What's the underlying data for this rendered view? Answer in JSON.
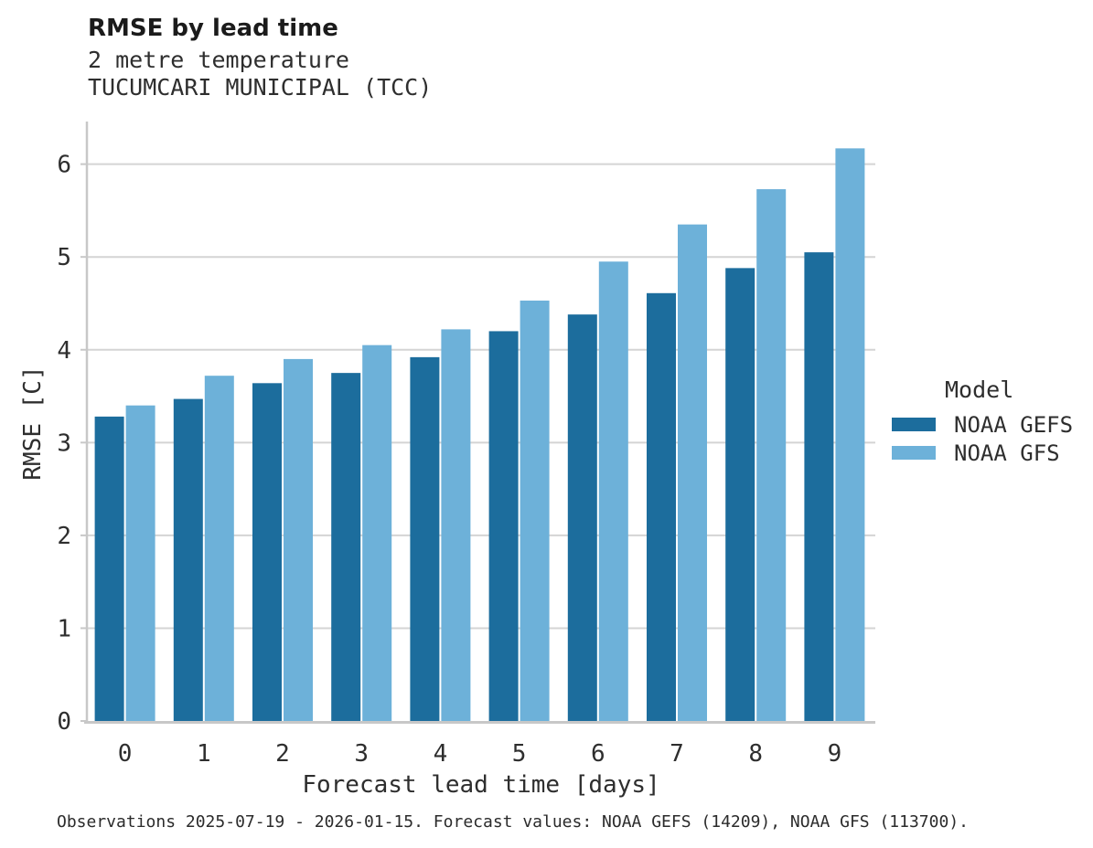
{
  "header": {
    "title": "RMSE by lead time",
    "subtitle": "2 metre temperature",
    "station": "TUCUMCARI MUNICIPAL (TCC)"
  },
  "caption": "Observations 2025-07-19 - 2026-01-15. Forecast values: NOAA GEFS (14209), NOAA GFS (113700).",
  "legend": {
    "title": "Model",
    "entries": [
      {
        "label": "NOAA GEFS",
        "color": "#1c6d9d"
      },
      {
        "label": "NOAA GFS",
        "color": "#6db1d9"
      }
    ]
  },
  "chart_data": {
    "type": "bar",
    "categories": [
      "0",
      "1",
      "2",
      "3",
      "4",
      "5",
      "6",
      "7",
      "8",
      "9"
    ],
    "series": [
      {
        "name": "NOAA GEFS",
        "color": "#1c6d9d",
        "values": [
          3.28,
          3.47,
          3.64,
          3.75,
          3.92,
          4.2,
          4.38,
          4.61,
          4.88,
          5.05
        ]
      },
      {
        "name": "NOAA GFS",
        "color": "#6db1d9",
        "values": [
          3.4,
          3.72,
          3.9,
          4.05,
          4.22,
          4.53,
          4.95,
          5.35,
          5.73,
          6.17
        ]
      }
    ],
    "title": "RMSE by lead time",
    "xlabel": "Forecast lead time [days]",
    "ylabel": "RMSE [C]",
    "ylim": [
      0,
      6.4
    ],
    "yticks": [
      0,
      1,
      2,
      3,
      4,
      5,
      6
    ],
    "grid": true,
    "legend_position": "right",
    "colors": {
      "grid": "#d4d4d4",
      "axis": "#c8c8c8",
      "tick_text": "#2e2e2e"
    }
  }
}
